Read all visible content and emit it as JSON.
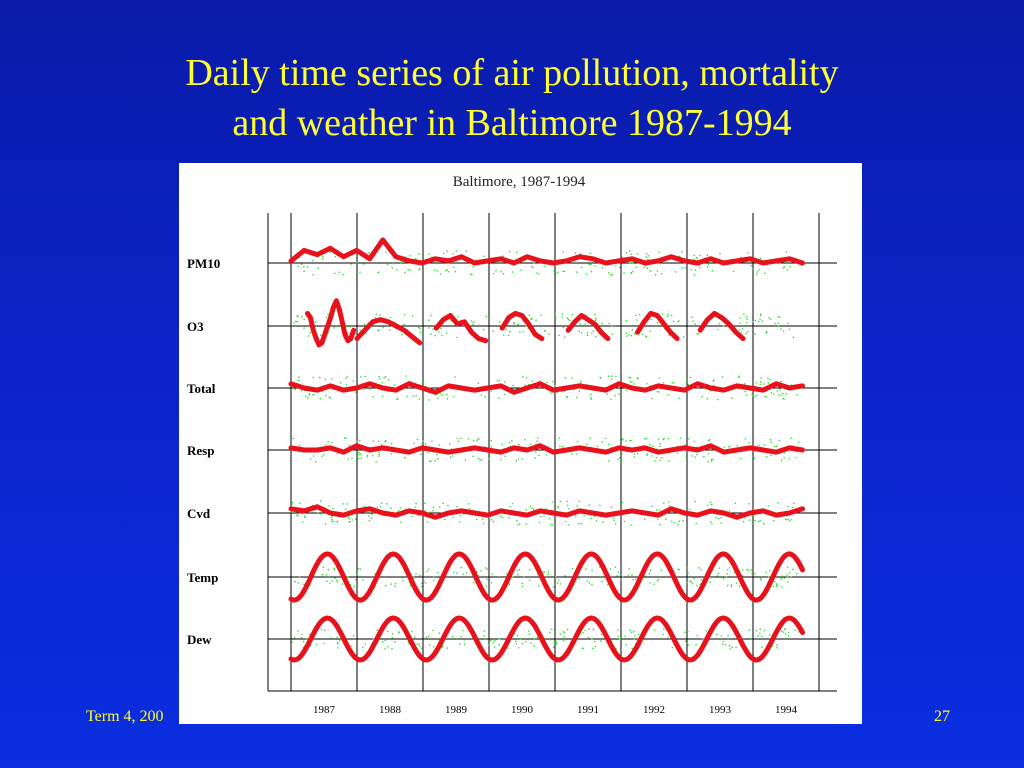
{
  "slide": {
    "title_line1": "Daily time series of air pollution, mortality",
    "title_line2": "and weather in Baltimore 1987-1994",
    "footer_left": "Term 4, 200",
    "page_number": "27"
  },
  "colors": {
    "background": "#0b23c8",
    "title": "#ffff33",
    "smooth": "#e8121c",
    "raw": "#33dd33",
    "frame": "#000000"
  },
  "chart_data": {
    "type": "line",
    "title": "Baltimore, 1987-1994",
    "xlabel": "",
    "ylabel": "",
    "x_range": [
      1987.0,
      1995.0
    ],
    "year_labels": [
      "1987",
      "1988",
      "1989",
      "1990",
      "1991",
      "1992",
      "1993",
      "1994"
    ],
    "grid": "vertical lines at year boundaries",
    "series": [
      {
        "name": "PM10",
        "kind": "pollution",
        "values_rel": [
          0.05,
          0.3,
          0.2,
          0.35,
          0.15,
          0.3,
          0.1,
          0.55,
          0.15,
          0.05,
          0.0,
          0.1,
          0.05,
          0.15,
          0.0,
          0.05,
          0.1,
          0.0,
          0.15,
          0.05,
          0.0,
          0.05,
          0.15,
          0.1,
          0.0,
          0.05,
          0.1,
          0.0,
          0.05,
          0.15,
          0.05,
          0.0,
          0.1,
          0.0,
          0.05,
          0.1,
          0.0,
          0.05,
          0.1,
          0.0
        ]
      },
      {
        "name": "O3",
        "kind": "pollution-seasonal",
        "segments": [
          {
            "start": 1987.25,
            "end": 1987.95,
            "values_rel": [
              0.3,
              0.2,
              -0.1,
              -0.3,
              -0.45,
              -0.4,
              -0.2,
              0.0,
              0.2,
              0.45,
              0.6,
              0.4,
              0.1,
              -0.2,
              -0.35,
              -0.3,
              -0.1
            ]
          },
          {
            "start": 1988.0,
            "end": 1988.95,
            "values_rel": [
              -0.3,
              -0.1,
              0.1,
              0.15,
              0.1,
              0.0,
              -0.1,
              -0.25,
              -0.4
            ]
          },
          {
            "start": 1989.2,
            "end": 1989.95,
            "values_rel": [
              -0.05,
              0.15,
              0.25,
              0.05,
              0.1,
              -0.15,
              -0.3,
              -0.35
            ]
          },
          {
            "start": 1990.2,
            "end": 1990.8,
            "values_rel": [
              -0.05,
              0.2,
              0.3,
              0.25,
              0.05,
              -0.2,
              -0.3
            ]
          },
          {
            "start": 1991.2,
            "end": 1991.8,
            "values_rel": [
              -0.1,
              0.1,
              0.25,
              0.15,
              0.05,
              -0.15,
              -0.3
            ]
          },
          {
            "start": 1992.25,
            "end": 1992.85,
            "values_rel": [
              -0.15,
              0.1,
              0.3,
              0.25,
              0.05,
              -0.15,
              -0.3
            ]
          },
          {
            "start": 1993.2,
            "end": 1993.85,
            "values_rel": [
              -0.1,
              0.15,
              0.3,
              0.2,
              0.05,
              -0.15,
              -0.3
            ]
          }
        ]
      },
      {
        "name": "Total",
        "kind": "mortality",
        "values_rel": [
          0.1,
          0.0,
          -0.05,
          0.05,
          -0.05,
          0.0,
          0.1,
          0.0,
          -0.05,
          0.1,
          0.0,
          -0.1,
          0.05,
          0.0,
          -0.05,
          0.0,
          0.05,
          -0.1,
          0.0,
          0.1,
          -0.05,
          0.0,
          0.05,
          0.0,
          -0.05,
          0.1,
          0.0,
          -0.05,
          0.05,
          0.0,
          -0.05,
          0.1,
          0.0,
          -0.05,
          0.05,
          0.0,
          -0.05,
          0.1,
          0.0,
          0.05
        ]
      },
      {
        "name": "Resp",
        "kind": "mortality",
        "values_rel": [
          0.05,
          0.0,
          0.0,
          0.05,
          -0.05,
          0.1,
          0.0,
          0.05,
          0.0,
          -0.05,
          0.05,
          0.0,
          -0.05,
          0.0,
          0.05,
          0.0,
          -0.05,
          0.05,
          0.0,
          0.1,
          -0.05,
          0.0,
          0.05,
          0.0,
          -0.05,
          0.05,
          0.0,
          0.05,
          -0.05,
          0.0,
          0.05,
          0.0,
          0.1,
          -0.05,
          0.0,
          0.05,
          0.0,
          -0.05,
          0.05,
          0.0
        ]
      },
      {
        "name": "Cvd",
        "kind": "mortality",
        "values_rel": [
          0.1,
          0.05,
          0.15,
          0.0,
          -0.05,
          0.05,
          0.1,
          0.0,
          -0.05,
          0.05,
          0.0,
          -0.1,
          0.0,
          0.05,
          0.0,
          -0.05,
          0.05,
          0.0,
          -0.05,
          0.05,
          0.0,
          -0.05,
          0.05,
          0.0,
          -0.05,
          0.0,
          0.05,
          0.0,
          -0.05,
          0.1,
          0.0,
          -0.05,
          0.05,
          0.0,
          -0.1,
          0.0,
          0.05,
          -0.05,
          0.0,
          0.1
        ]
      },
      {
        "name": "Temp",
        "kind": "weather-seasonal",
        "amplitude_rel": 0.55
      },
      {
        "name": "Dew",
        "kind": "weather-seasonal",
        "amplitude_rel": 0.5
      }
    ]
  }
}
